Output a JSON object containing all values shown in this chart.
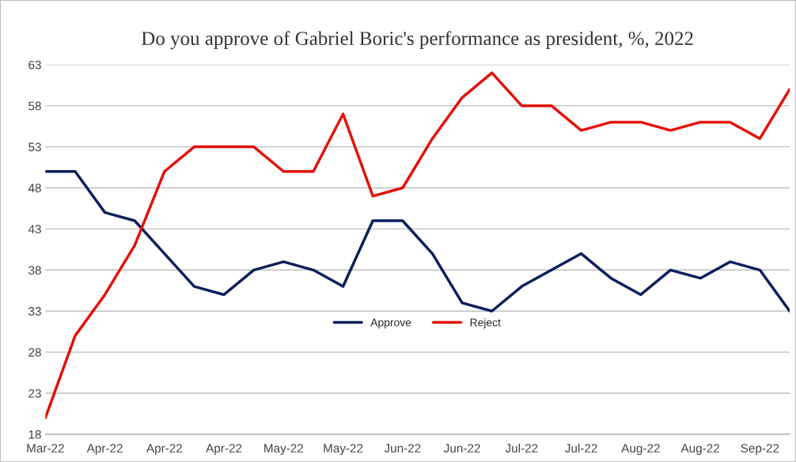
{
  "chart_data": {
    "type": "line",
    "title": "Do you approve of Gabriel Boric's performance as president, %, 2022",
    "categories": [
      "Mar-22",
      null,
      "Apr-22",
      null,
      "Apr-22",
      null,
      "Apr-22",
      null,
      "May-22",
      null,
      "May-22",
      null,
      "Jun-22",
      null,
      "Jun-22",
      null,
      "Jul-22",
      null,
      "Jul-22",
      null,
      "Aug-22",
      null,
      "Aug-22",
      null,
      "Sep-22",
      null
    ],
    "series": [
      {
        "name": "Approve",
        "color": "#0d1f5c",
        "values": [
          50,
          50,
          45,
          44,
          40,
          36,
          35,
          38,
          39,
          38,
          36,
          44,
          44,
          40,
          34,
          33,
          36,
          38,
          40,
          37,
          35,
          38,
          37,
          39,
          38,
          33
        ]
      },
      {
        "name": "Reject",
        "color": "#e3120b",
        "values": [
          20,
          30,
          35,
          41,
          50,
          53,
          53,
          53,
          50,
          50,
          57,
          47,
          48,
          54,
          59,
          62,
          58,
          58,
          55,
          56,
          56,
          55,
          56,
          56,
          54,
          60
        ]
      }
    ],
    "ylim": [
      18,
      63
    ],
    "yticks": [
      18,
      23,
      28,
      33,
      38,
      43,
      48,
      53,
      58,
      63
    ],
    "grid": "y",
    "legend": "center",
    "marker": "none",
    "line_style": "solid"
  }
}
